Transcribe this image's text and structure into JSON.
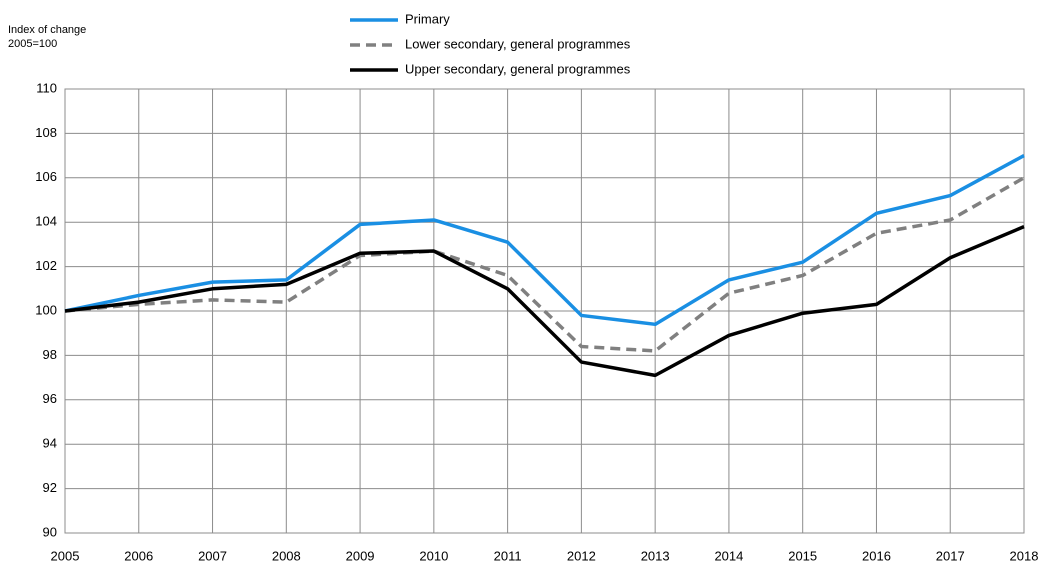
{
  "chart_data": {
    "type": "line",
    "y_label": [
      "Index of change",
      "2005=100"
    ],
    "x": [
      2005,
      2006,
      2007,
      2008,
      2009,
      2010,
      2011,
      2012,
      2013,
      2014,
      2015,
      2016,
      2017,
      2018
    ],
    "series": [
      {
        "name": "Primary",
        "color": "#1a8fe3",
        "dash": false,
        "values": [
          100,
          100.7,
          101.3,
          101.4,
          103.9,
          104.1,
          103.1,
          99.8,
          99.4,
          101.4,
          102.2,
          104.4,
          105.2,
          107
        ]
      },
      {
        "name": "Lower secondary, general programmes",
        "color": "#808080",
        "dash": true,
        "values": [
          100,
          100.3,
          100.5,
          100.4,
          102.5,
          102.7,
          101.6,
          98.4,
          98.2,
          100.8,
          101.6,
          103.5,
          104.1,
          106
        ]
      },
      {
        "name": "Upper secondary, general programmes",
        "color": "#000000",
        "dash": false,
        "values": [
          100,
          100.4,
          101.0,
          101.2,
          102.6,
          102.7,
          101.0,
          97.7,
          97.1,
          98.9,
          99.9,
          100.3,
          102.4,
          103.8
        ]
      }
    ],
    "xlim": [
      2005,
      2018
    ],
    "xticks": [
      2005,
      2006,
      2007,
      2008,
      2009,
      2010,
      2011,
      2012,
      2013,
      2014,
      2015,
      2016,
      2017,
      2018
    ],
    "ylim": [
      90,
      110
    ],
    "yticks": [
      90,
      92,
      94,
      96,
      98,
      100,
      102,
      104,
      106,
      108,
      110
    ],
    "grid": true,
    "legend": "top"
  }
}
